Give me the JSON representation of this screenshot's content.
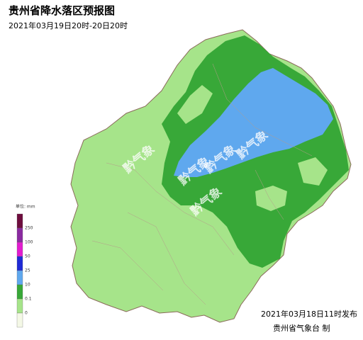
{
  "header": {
    "title": "贵州省降水落区预报图",
    "subtitle": "2021年03月19日20时-20日20时"
  },
  "legend": {
    "unit": "单位: mm",
    "colors": [
      "#6e0d3e",
      "#8a2aa0",
      "#e21ccf",
      "#1f2bd6",
      "#5fa8ee",
      "#38a838",
      "#a6e48a",
      "#f4f8e6"
    ],
    "labels": [
      "250",
      "100",
      "50",
      "25",
      "10",
      "0.1",
      "0"
    ]
  },
  "watermark": "黔气象",
  "footer": {
    "issued": "2021年03月18日11时发布",
    "agency": "贵州省气象台 制"
  }
}
